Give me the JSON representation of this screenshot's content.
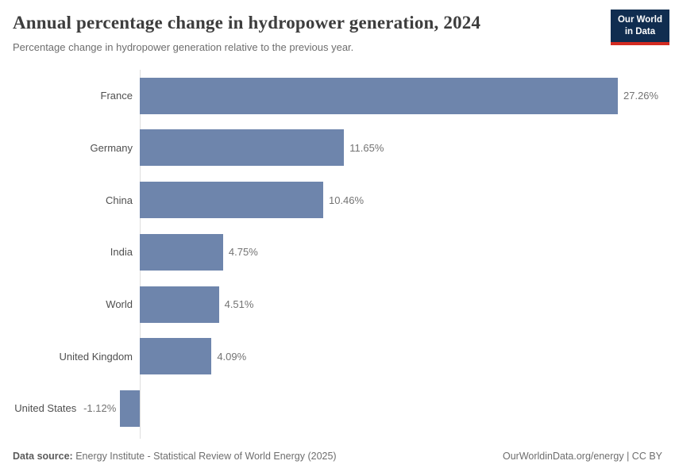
{
  "header": {
    "title": "Annual percentage change in hydropower generation, 2024",
    "subtitle": "Percentage change in hydropower generation relative to the previous year.",
    "logo": {
      "line1": "Our World",
      "line2": "in Data"
    }
  },
  "chart_data": {
    "type": "bar",
    "orientation": "horizontal",
    "title": "Annual percentage change in hydropower generation, 2024",
    "subtitle": "Percentage change in hydropower generation relative to the previous year.",
    "categories": [
      "France",
      "Germany",
      "China",
      "India",
      "World",
      "United Kingdom",
      "United States"
    ],
    "values": [
      27.26,
      11.65,
      10.46,
      4.75,
      4.51,
      4.09,
      -1.12
    ],
    "value_labels": [
      "27.26%",
      "11.65%",
      "10.46%",
      "4.75%",
      "4.51%",
      "4.09%",
      "-1.12%"
    ],
    "xlabel": "",
    "ylabel": "",
    "xlim": [
      -1.5,
      29
    ],
    "grid": false,
    "legend": "none",
    "data_labels": true,
    "bar_color": "#6e85ac"
  },
  "colors": {
    "bar": "#6e85ac",
    "axis_line": "#dedede",
    "logo_background": "#102d50",
    "logo_underline": "#d42b21",
    "title_text": "#3d3d3d",
    "subtitle_text": "#6e6e6e",
    "value_label_text": "#737373"
  },
  "footer": {
    "source_label": "Data source:",
    "source_text": " Energy Institute - Statistical Review of World Energy (2025)",
    "attribution": "OurWorldinData.org/energy | CC BY"
  }
}
